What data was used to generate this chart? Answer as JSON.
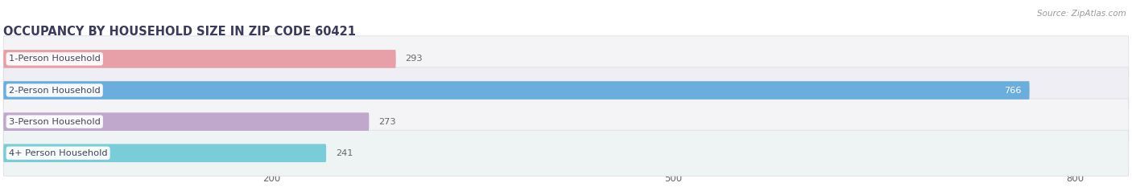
{
  "title": "OCCUPANCY BY HOUSEHOLD SIZE IN ZIP CODE 60421",
  "source": "Source: ZipAtlas.com",
  "categories": [
    "1-Person Household",
    "2-Person Household",
    "3-Person Household",
    "4+ Person Household"
  ],
  "values": [
    293,
    766,
    273,
    241
  ],
  "bar_colors": [
    "#e8a0a8",
    "#6aaedd",
    "#c0a8cc",
    "#7accd8"
  ],
  "row_bg_colors": [
    "#f4f4f6",
    "#eeeef4",
    "#f4f4f6",
    "#eef4f4"
  ],
  "row_border_color": "#d8d8e0",
  "title_color": "#3a3a5c",
  "label_color": "#444455",
  "value_color_dark": "#666666",
  "value_color_light": "#ffffff",
  "source_color": "#999999",
  "xlim_max": 840,
  "xticks": [
    200,
    500,
    800
  ],
  "figsize": [
    14.06,
    2.33
  ],
  "dpi": 100
}
